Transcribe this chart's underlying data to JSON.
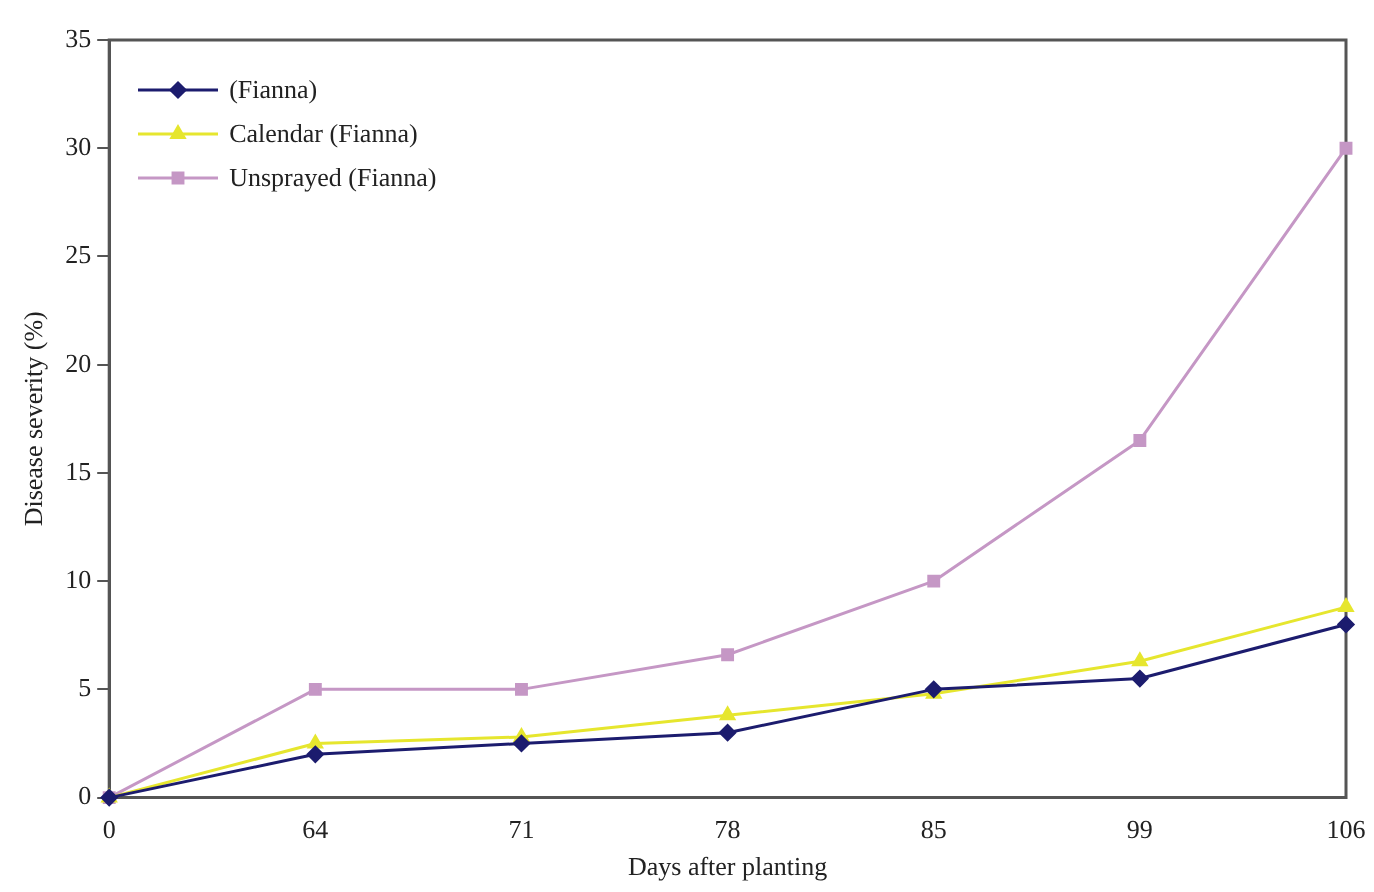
{
  "chart_data": {
    "type": "line",
    "xlabel": "Days after planting",
    "ylabel": "Disease severity (%)",
    "categories": [
      "0",
      "64",
      "71",
      "78",
      "85",
      "99",
      "106"
    ],
    "series": [
      {
        "name": "(Fianna)",
        "color": "#1c1c6e",
        "marker": "diamond",
        "values": [
          0,
          2,
          2.5,
          3,
          5,
          5.5,
          8
        ]
      },
      {
        "name": "Calendar (Fianna)",
        "color": "#e6e62e",
        "marker": "triangle",
        "values": [
          0,
          2.5,
          2.8,
          3.8,
          4.8,
          6.3,
          8.8
        ]
      },
      {
        "name": "Unsprayed (Fianna)",
        "color": "#c597c5",
        "marker": "square",
        "values": [
          0,
          5,
          5,
          6.6,
          10,
          16.5,
          30
        ]
      }
    ],
    "ylim": [
      0,
      35
    ],
    "yticks": [
      0,
      5,
      10,
      15,
      20,
      25,
      30,
      35
    ],
    "grid": false,
    "legend": "top left",
    "line_style": "solid"
  }
}
